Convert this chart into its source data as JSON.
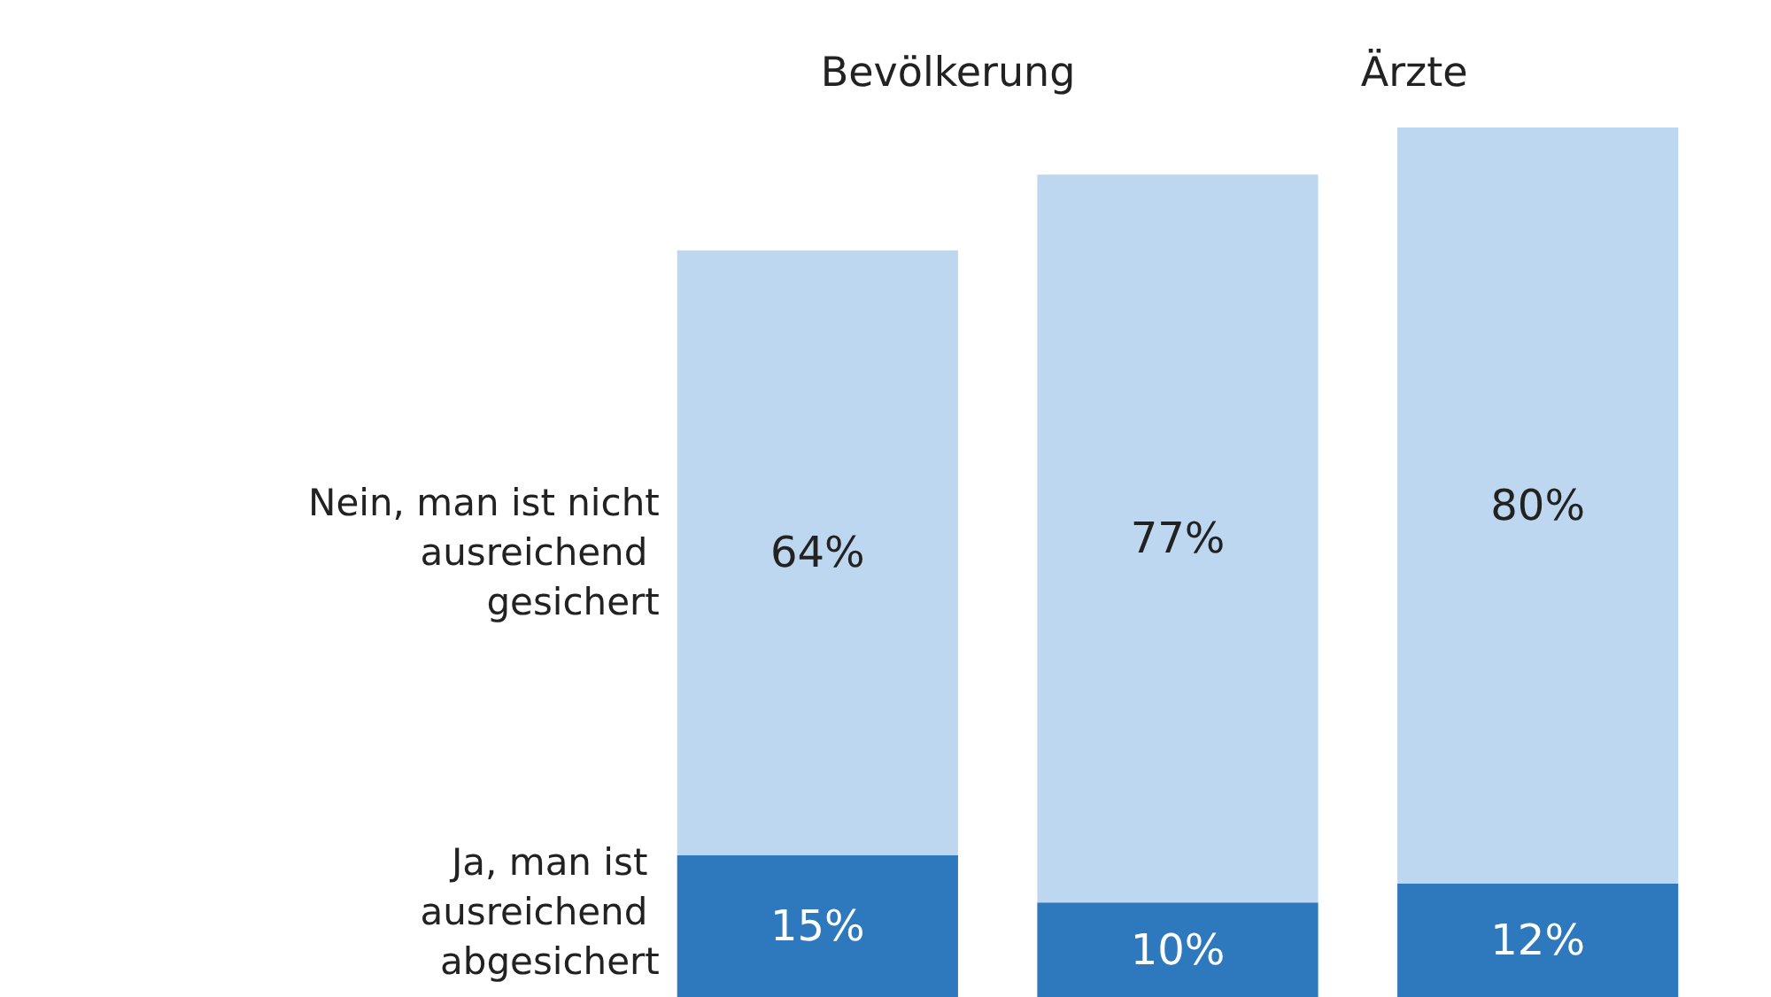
{
  "chart_data": {
    "type": "bar",
    "stacked": true,
    "legend": false,
    "categories": [
      null,
      null,
      null
    ],
    "annotations": [
      "Bevölkerung",
      "Ärzte"
    ],
    "series": [
      {
        "name": "Ja, man ist ausreichend abgesichert",
        "color": "#2e78be",
        "values": [
          15,
          10,
          12
        ],
        "value_labels": [
          "15%",
          "10%",
          "12%"
        ]
      },
      {
        "name": "Nein, man ist nicht ausreichend gesichert",
        "color": "#bcd7ef",
        "values": [
          64,
          77,
          80
        ],
        "value_labels": [
          "64%",
          "77%",
          "80%"
        ]
      }
    ]
  }
}
